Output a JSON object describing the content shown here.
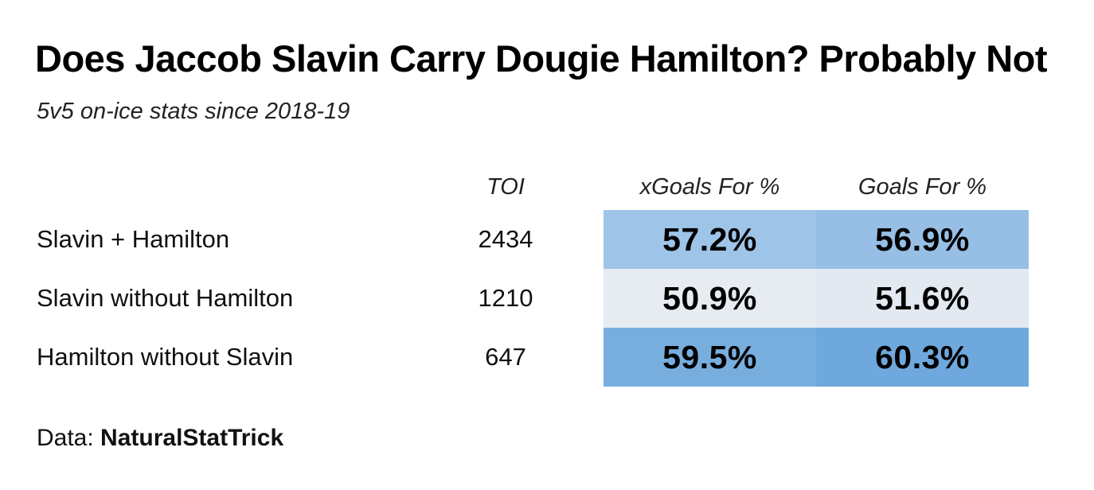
{
  "chart_data": {
    "type": "table",
    "title": "Does Jaccob Slavin Carry Dougie Hamilton? Probably Not",
    "subtitle": "5v5 on-ice stats since 2018-19",
    "columns": [
      "TOI",
      "xGoals For %",
      "Goals For %"
    ],
    "rows": [
      {
        "label": "Slavin + Hamilton",
        "toi": "2434",
        "xgf": "57.2%",
        "gf": "56.9%",
        "xgf_value": 57.2,
        "gf_value": 56.9,
        "xgf_color": "#9ec4e8",
        "gf_color": "#97bfe5"
      },
      {
        "label": "Slavin without Hamilton",
        "toi": "1210",
        "xgf": "50.9%",
        "gf": "51.6%",
        "xgf_value": 50.9,
        "gf_value": 51.6,
        "xgf_color": "#e6ecf2",
        "gf_color": "#e2e9f1"
      },
      {
        "label": "Hamilton without Slavin",
        "toi": "647",
        "xgf": "59.5%",
        "gf": "60.3%",
        "xgf_value": 59.5,
        "gf_value": 60.3,
        "xgf_color": "#78aede",
        "gf_color": "#6fa8dc"
      }
    ],
    "source_prefix": "Data: ",
    "source_name": "NaturalStatTrick"
  }
}
